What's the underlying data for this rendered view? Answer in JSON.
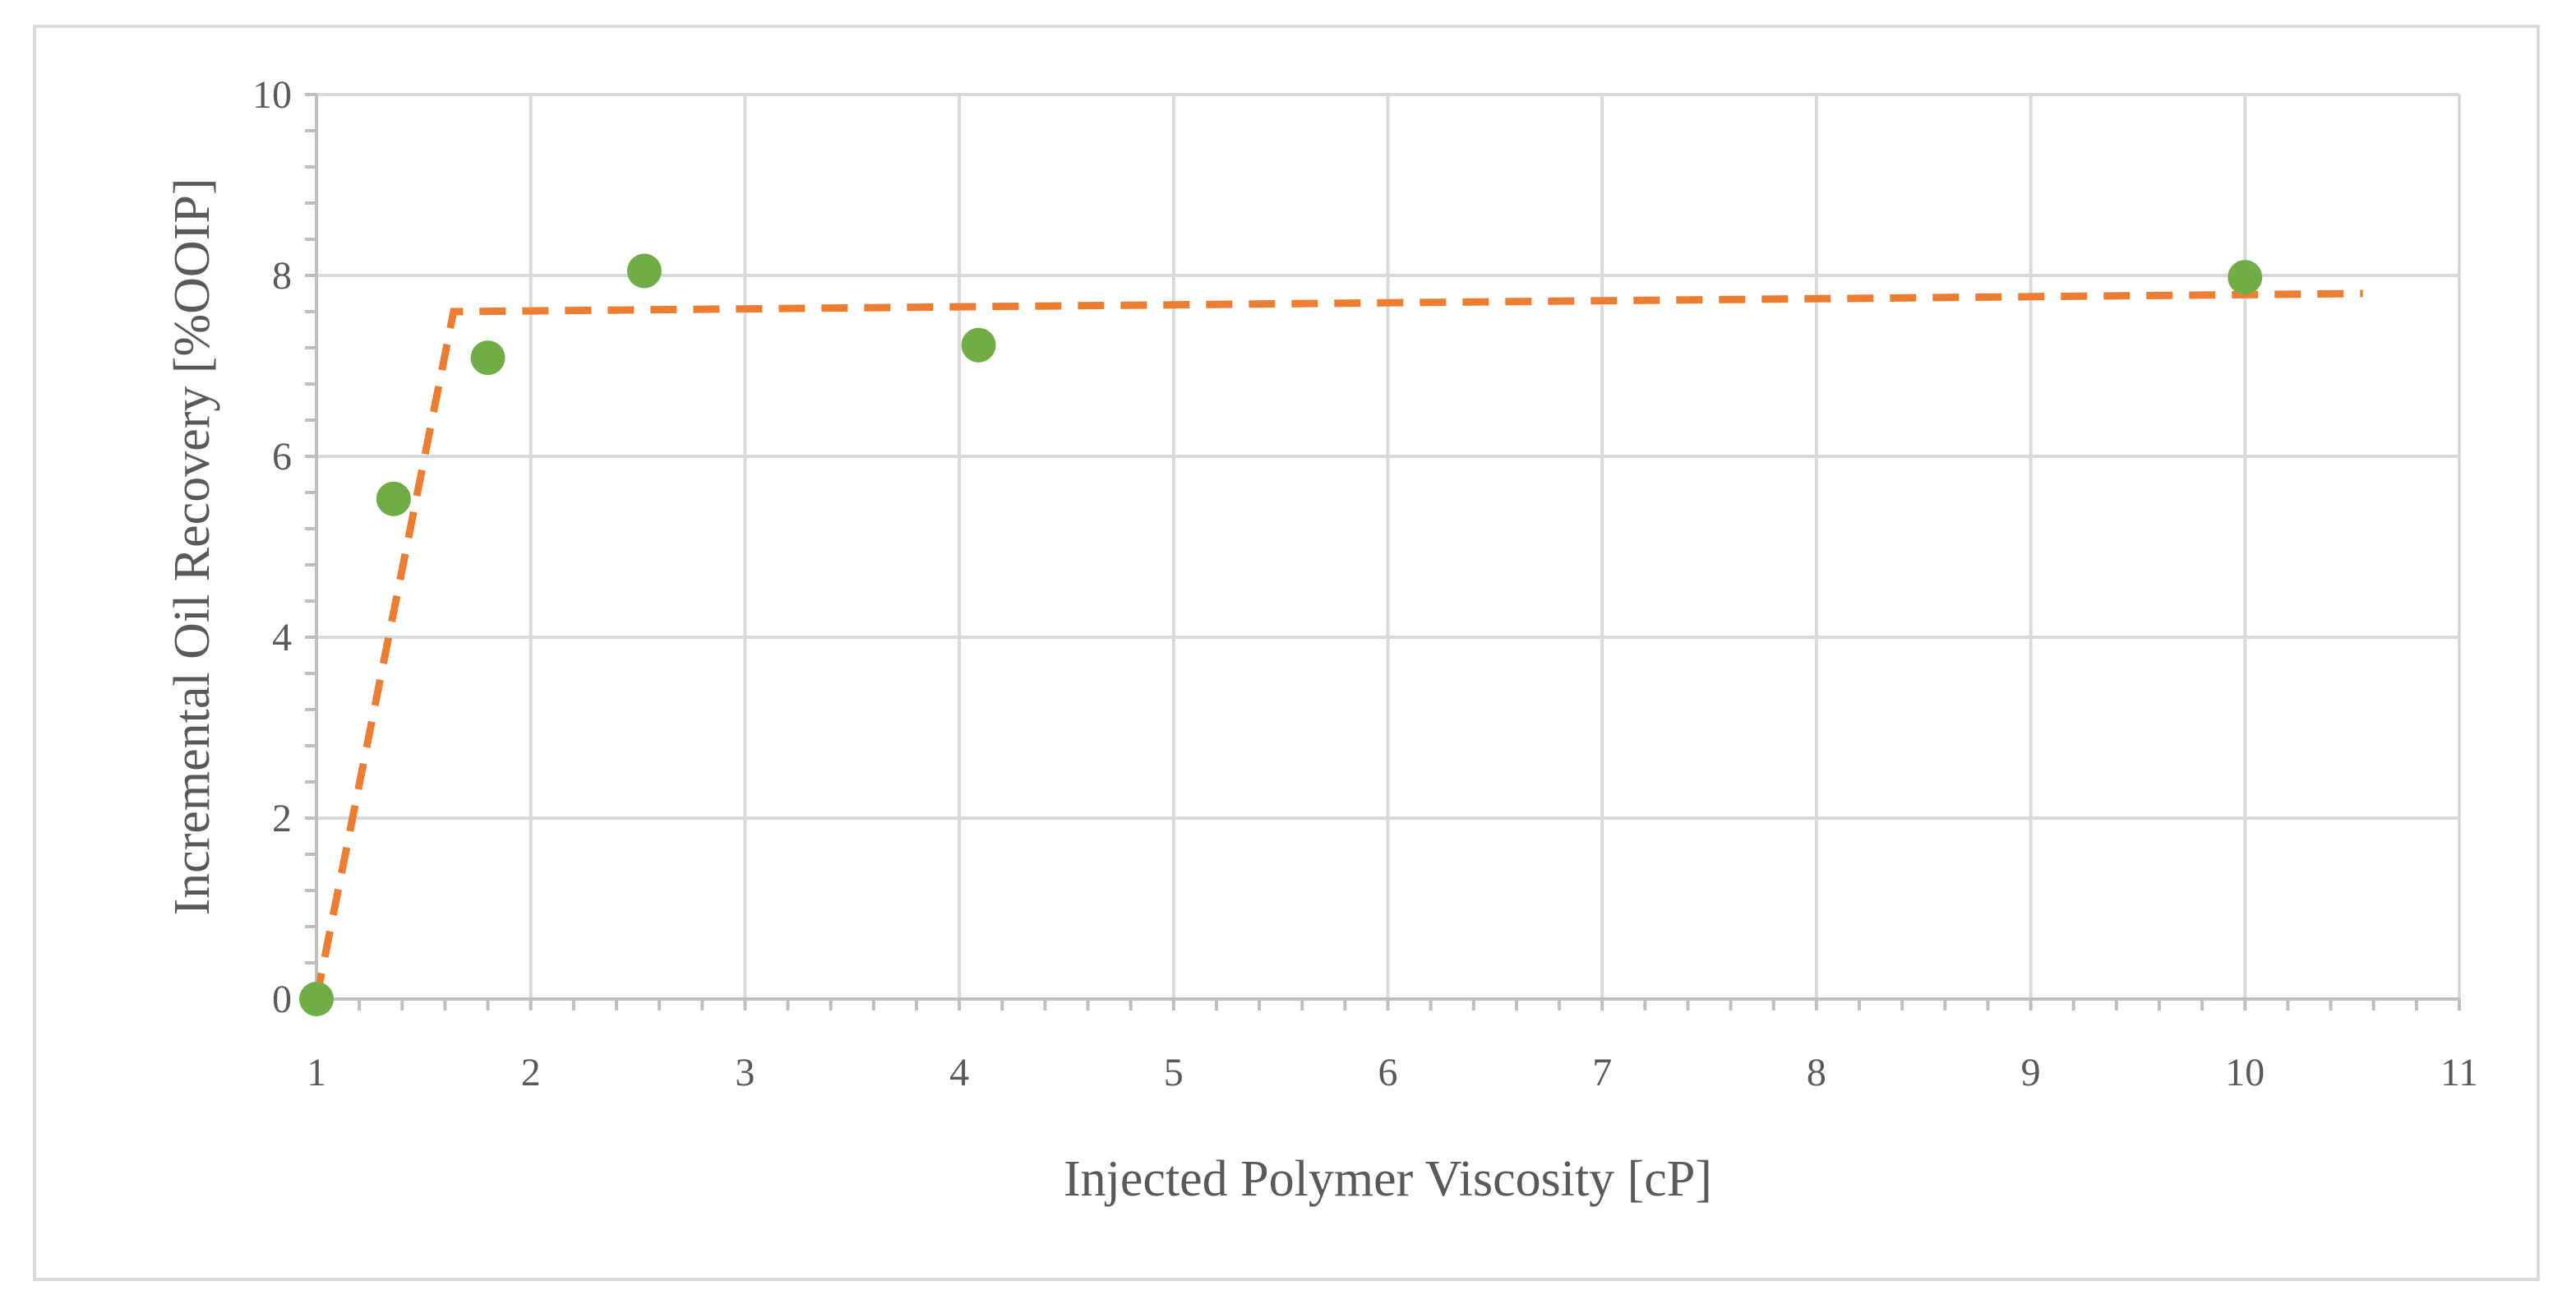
{
  "chart_data": {
    "type": "scatter",
    "title": "",
    "xlabel": "Injected Polymer Viscosity [cP]",
    "ylabel": "Incremental Oil Recovery [%OOIP]",
    "xlim": [
      1,
      11
    ],
    "ylim": [
      0,
      10
    ],
    "x_ticks": [
      "1",
      "2",
      "3",
      "4",
      "5",
      "6",
      "7",
      "8",
      "9",
      "10",
      "11"
    ],
    "y_ticks": [
      "0",
      "2",
      "4",
      "6",
      "8",
      "10"
    ],
    "grid": true,
    "legend": "none",
    "series": [
      {
        "type": "scatter",
        "color": "#70ad47",
        "x": [
          1.0,
          1.36,
          1.8,
          2.53,
          4.09,
          10.0
        ],
        "y": [
          0.0,
          5.53,
          7.09,
          8.05,
          7.23,
          7.98
        ]
      },
      {
        "type": "line",
        "style": "dashed",
        "color": "#ed7d31",
        "x": [
          1.0,
          1.64,
          10.55
        ],
        "y": [
          0.0,
          7.6,
          7.8
        ]
      }
    ]
  }
}
